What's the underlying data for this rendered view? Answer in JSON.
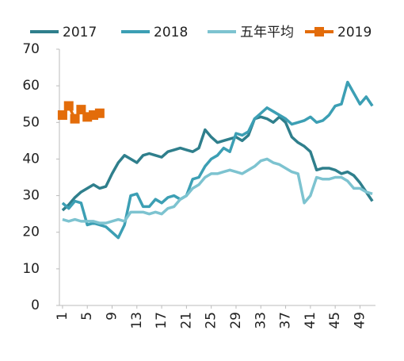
{
  "chart_data": {
    "type": "line",
    "x": [
      1,
      2,
      3,
      4,
      5,
      6,
      7,
      8,
      9,
      10,
      11,
      12,
      13,
      14,
      15,
      16,
      17,
      18,
      19,
      20,
      21,
      22,
      23,
      24,
      25,
      26,
      27,
      28,
      29,
      30,
      31,
      32,
      33,
      34,
      35,
      36,
      37,
      38,
      39,
      40,
      41,
      42,
      43,
      44,
      45,
      46,
      47,
      48,
      49,
      50,
      51
    ],
    "xlim": [
      0.5,
      51.5
    ],
    "xticks": [
      1,
      5,
      9,
      13,
      17,
      21,
      25,
      29,
      33,
      37,
      41,
      45,
      49
    ],
    "ylim": [
      0,
      70
    ],
    "yticks": [
      0,
      10,
      20,
      30,
      40,
      50,
      60,
      70
    ],
    "grid": false,
    "legend": "top",
    "series": [
      {
        "name": "2017",
        "color": "#2f7f8c",
        "values": [
          26,
          27.5,
          29.5,
          31,
          32,
          33,
          32,
          32.5,
          36,
          39,
          41,
          40,
          39,
          41,
          41.5,
          41,
          40.5,
          42,
          42.5,
          43,
          42.5,
          42,
          43,
          48,
          46,
          44.5,
          45,
          45.5,
          46,
          45,
          46.5,
          51,
          51.5,
          51,
          50,
          51.5,
          50,
          46,
          44.5,
          43.5,
          42,
          37,
          37.5,
          37.5,
          37,
          36,
          36.5,
          35.5,
          33.5,
          31,
          28.5
        ]
      },
      {
        "name": "2018",
        "color": "#3c9fb4",
        "values": [
          28,
          26.5,
          28.5,
          28,
          22,
          22.5,
          22,
          21.5,
          20,
          18.5,
          22,
          30,
          30.5,
          27,
          27,
          29,
          28,
          29.5,
          30,
          29,
          30,
          34.5,
          35,
          38,
          40,
          41,
          43,
          42,
          47,
          46.5,
          47.5,
          51,
          52.5,
          54,
          53,
          52,
          51,
          49.5,
          50,
          50.5,
          51.5,
          50,
          50.5,
          52,
          54.5,
          55,
          61,
          58,
          55,
          57,
          54.5
        ]
      },
      {
        "name": "五年平均",
        "color": "#7dc3d0",
        "values": [
          23.5,
          23,
          23.5,
          23,
          23,
          23,
          22.5,
          22.5,
          23,
          23.5,
          23,
          25.5,
          25.5,
          25.5,
          25,
          25.5,
          25,
          26.5,
          27,
          29,
          30,
          32,
          33,
          35,
          36,
          36,
          36.5,
          37,
          36.5,
          36,
          37,
          38,
          39.5,
          40,
          39,
          38.5,
          37.5,
          36.5,
          36,
          28,
          30,
          35,
          34.5,
          34.5,
          35,
          35,
          34,
          32,
          32,
          31,
          30.5
        ]
      },
      {
        "name": "2019",
        "color": "#e36c0a",
        "marker": "square",
        "values": [
          52,
          54.5,
          51,
          53.5,
          51.5,
          52,
          52.5,
          null,
          null,
          null,
          null,
          null,
          null,
          null,
          null,
          null,
          null,
          null,
          null,
          null,
          null,
          null,
          null,
          null,
          null,
          null,
          null,
          null,
          null,
          null,
          null,
          null,
          null,
          null,
          null,
          null,
          null,
          null,
          null,
          null,
          null,
          null,
          null,
          null,
          null,
          null,
          null,
          null,
          null,
          null,
          null
        ]
      }
    ]
  }
}
